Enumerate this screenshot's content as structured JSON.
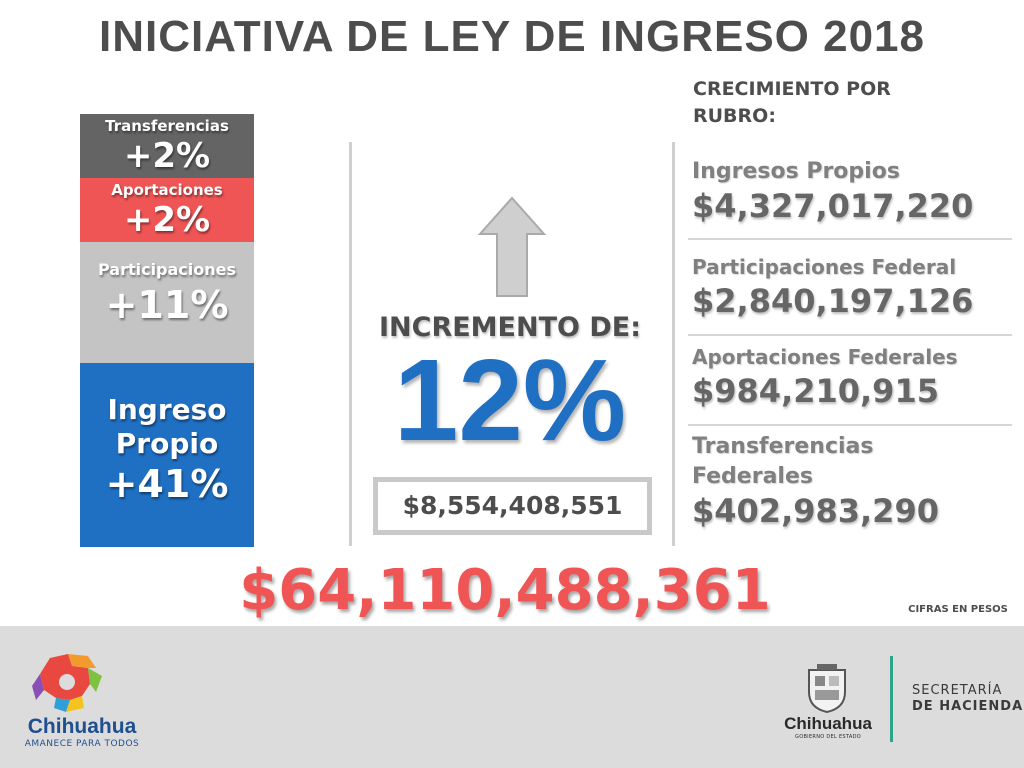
{
  "title": "INICIATIVA DE LEY DE INGRESO 2018",
  "stack": {
    "transferencias": {
      "label": "Transferencias",
      "pct": "+2%"
    },
    "aportaciones": {
      "label": "Aportaciones",
      "pct": "+2%"
    },
    "participaciones": {
      "label": "Participaciones",
      "pct": "+11%"
    },
    "ingreso_propio": {
      "label_line1": "Ingreso",
      "label_line2": "Propio",
      "pct": "+41%"
    }
  },
  "increment": {
    "label": "INCREMENTO DE:",
    "pct": "12%",
    "amount": "$8,554,408,551"
  },
  "growth": {
    "heading_line1": "CRECIMIENTO POR",
    "heading_line2": "RUBRO:",
    "items": [
      {
        "label": "Ingresos Propios",
        "value": "$4,327,017,220"
      },
      {
        "label": "Participaciones Federal",
        "value": "$2,840,197,126"
      },
      {
        "label": "Aportaciones Federales",
        "value": "$984,210,915"
      },
      {
        "label_line1": "Transferencias",
        "label_line2": "Federales",
        "value": "$402,983,290"
      }
    ]
  },
  "total": "$64,110,488,361",
  "cifras": "CIFRAS EN PESOS",
  "footer": {
    "left_logo_name": "Chihuahua",
    "left_logo_tagline": "AMANECE PARA TODOS",
    "gov_name": "Chihuahua",
    "gov_tagline": "GOBIERNO DEL ESTADO",
    "secretaria_line1": "SECRETARÍA",
    "secretaria_line2": "DE HACIENDA"
  },
  "colors": {
    "blue": "#1f6fc3",
    "red": "#f05555",
    "dark_gray": "#646464",
    "light_gray": "#c4c4c4",
    "teal": "#2fa38a"
  }
}
